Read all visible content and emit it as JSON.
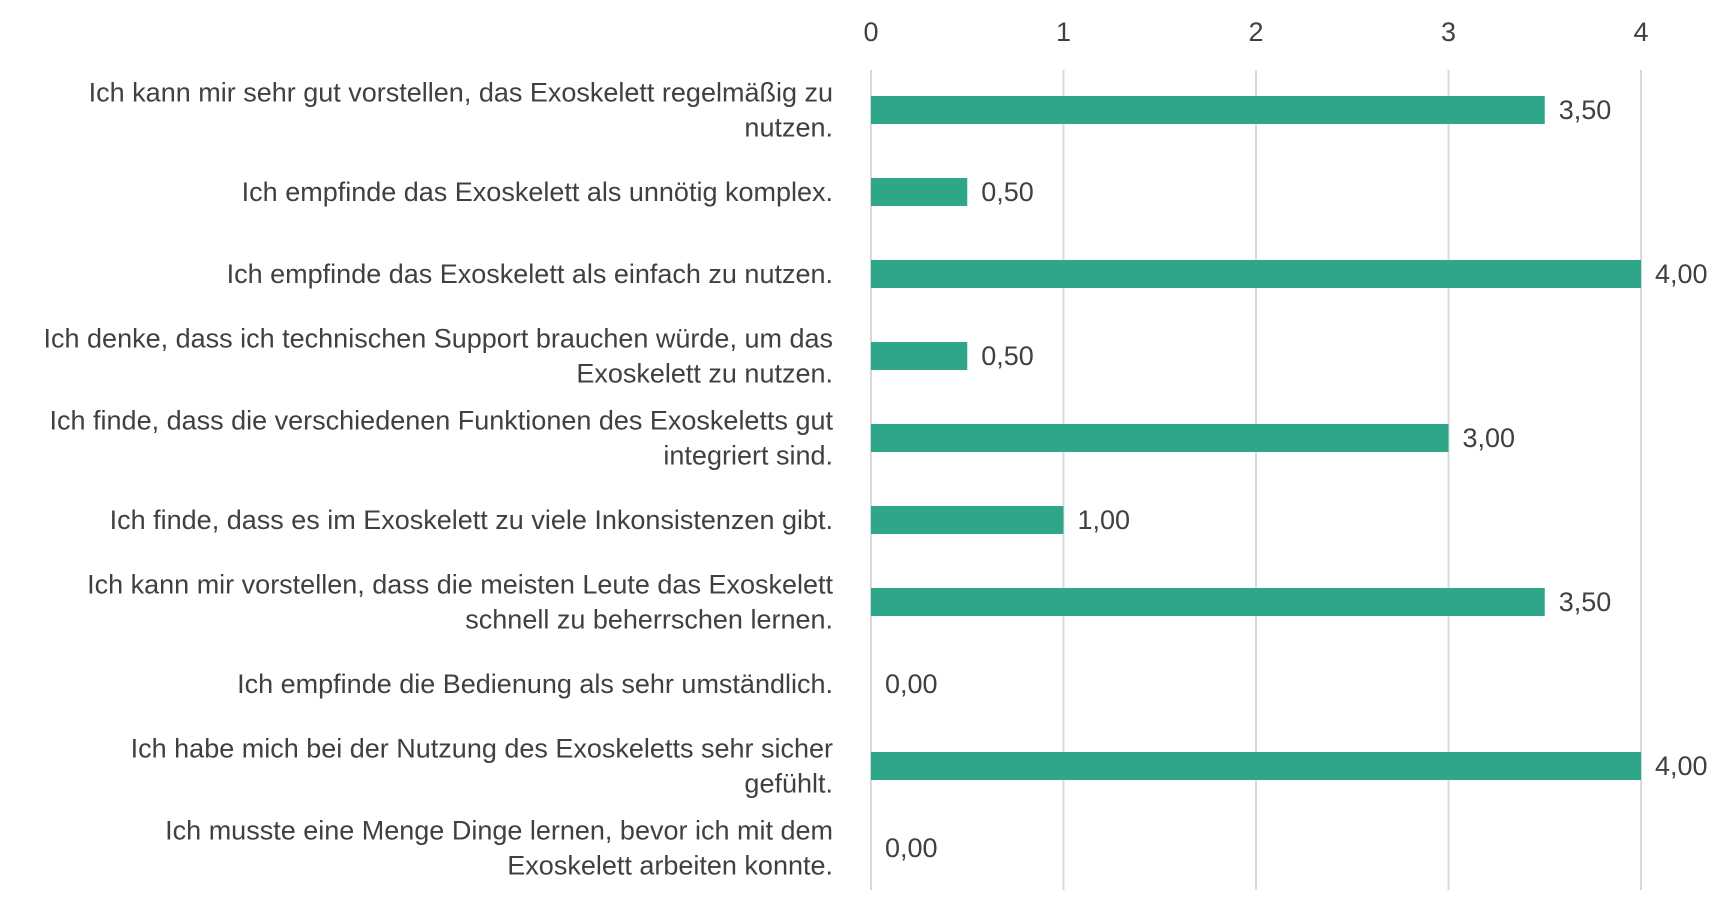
{
  "chart_data": {
    "type": "bar",
    "orientation": "horizontal",
    "title": "",
    "xlabel": "",
    "ylabel": "",
    "xlim": [
      0,
      4
    ],
    "ticks": [
      0,
      1,
      2,
      3,
      4
    ],
    "tick_labels": [
      "0",
      "1",
      "2",
      "3",
      "4"
    ],
    "grid": true,
    "axis_position": "top",
    "bar_color": "#2EA689",
    "categories": [
      [
        "Ich kann mir sehr gut vorstellen, das Exoskelett regelmäßig zu",
        "nutzen."
      ],
      [
        "Ich empfinde das Exoskelett als unnötig komplex."
      ],
      [
        "Ich empfinde das Exoskelett als einfach zu nutzen."
      ],
      [
        "Ich denke, dass ich technischen Support brauchen würde, um das",
        "Exoskelett zu nutzen."
      ],
      [
        "Ich finde, dass die verschiedenen Funktionen des Exoskeletts gut",
        "integriert sind."
      ],
      [
        "Ich finde, dass es im Exoskelett zu viele Inkonsistenzen gibt."
      ],
      [
        "Ich kann mir vorstellen, dass die meisten Leute das Exoskelett",
        "schnell zu beherrschen lernen."
      ],
      [
        "Ich empfinde die Bedienung als sehr umständlich."
      ],
      [
        "Ich habe mich bei der Nutzung des Exoskeletts sehr sicher",
        "gefühlt."
      ],
      [
        "Ich musste eine Menge Dinge lernen, bevor ich mit dem",
        "Exoskelett arbeiten konnte."
      ]
    ],
    "values": [
      3.5,
      0.5,
      4.0,
      0.5,
      3.0,
      1.0,
      3.5,
      0.0,
      4.0,
      0.0
    ],
    "data_labels": [
      "3,50",
      "0,50",
      "4,00",
      "0,50",
      "3,00",
      "1,00",
      "3,50",
      "0,00",
      "4,00",
      "0,00"
    ]
  }
}
